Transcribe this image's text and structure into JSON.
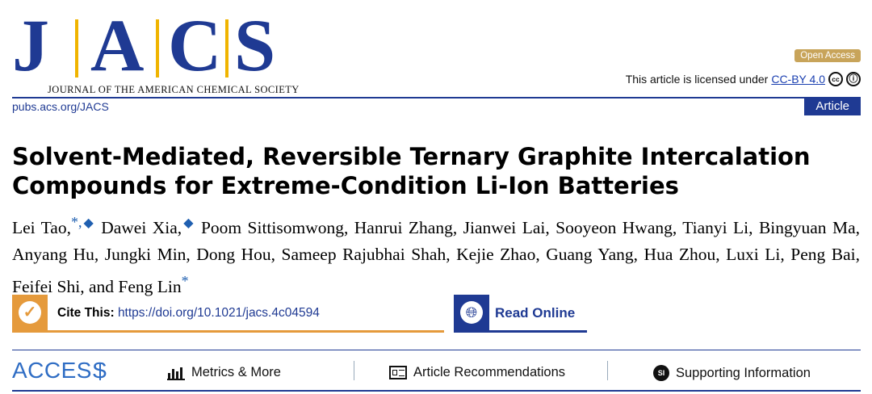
{
  "header": {
    "logo_letters": [
      "J",
      "A",
      "C",
      "S"
    ],
    "logo_subtitle": "JOURNAL OF THE AMERICAN CHEMICAL SOCIETY",
    "open_access": "Open Access",
    "license_prefix": "This article is licensed under",
    "license_link": "CC-BY 4.0",
    "journal_link": "pubs.acs.org/JACS",
    "article_type": "Article",
    "colors": {
      "navy": "#1f3a93",
      "gold": "#f0b400",
      "orange": "#e59a3c",
      "access_blue": "#2f6dc4"
    }
  },
  "article": {
    "title_line1": "Solvent-Mediated, Reversible Ternary Graphite Intercalation",
    "title_line2": "Compounds for Extreme-Condition Li-Ion Batteries",
    "authors": {
      "first": "Lei Tao,",
      "first_marks": "*,",
      "second": " Dawei Xia,",
      "rest": " Poom Sittisomwong, Hanrui Zhang, Jianwei Lai, Sooyeon Hwang, Tianyi Li, Bingyuan Ma, Anyang Hu, Jungki Min, Dong Hou, Sameep Rajubhai Shah, Kejie Zhao, Guang Yang, Hua Zhou, Luxi Li, Peng Bai, Feifei Shi, and Feng Lin",
      "corresponding_mark": "*",
      "equal_mark": "◆"
    }
  },
  "cite": {
    "label": "Cite This:",
    "doi": "https://doi.org/10.1021/jacs.4c04594",
    "icon": "checkmark-icon"
  },
  "read_online": {
    "label": "Read Online",
    "icon": "globe-icon"
  },
  "access_bar": {
    "label": "ACCESS",
    "items": [
      {
        "label": "Metrics & More",
        "icon": "bar-chart-icon"
      },
      {
        "label": "Article Recommendations",
        "icon": "document-icon"
      },
      {
        "label": "Supporting Information",
        "icon": "si-icon",
        "icon_text": "SI"
      }
    ]
  }
}
